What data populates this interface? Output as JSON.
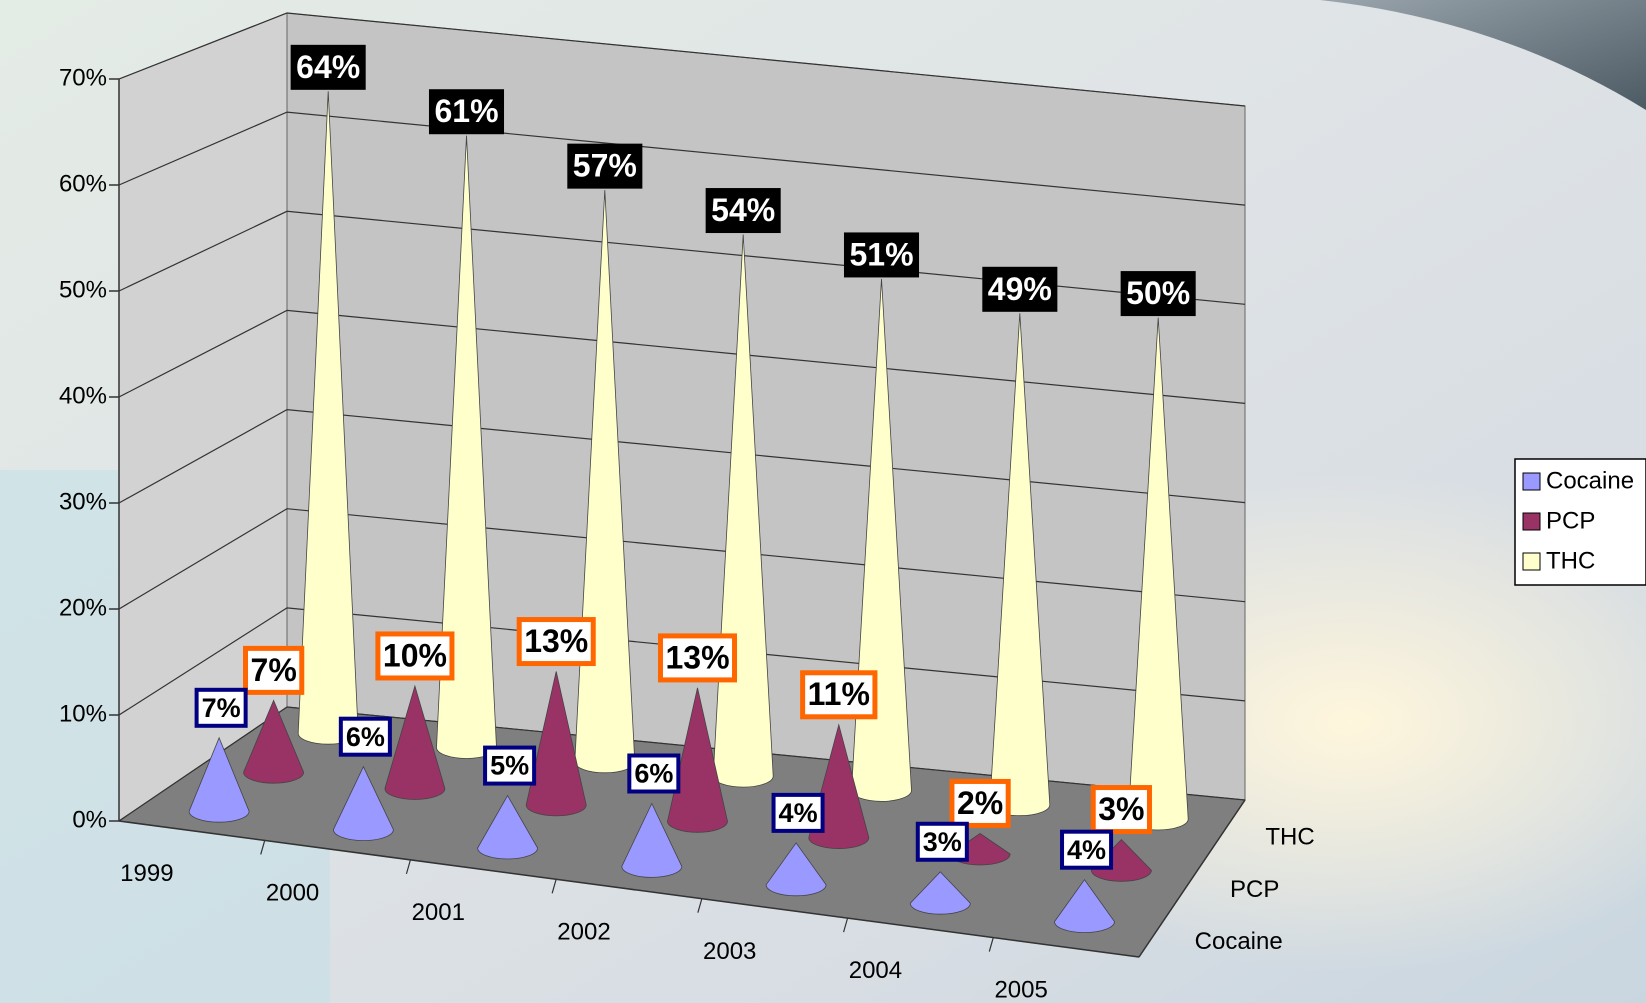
{
  "chart_data": {
    "type": "cone3d",
    "categories": [
      "1999",
      "2000",
      "2001",
      "2002",
      "2003",
      "2004",
      "2005"
    ],
    "series": [
      {
        "name": "Cocaine",
        "color": "#9999ff",
        "values": [
          7,
          6,
          5,
          6,
          4,
          3,
          4
        ],
        "value_labels": [
          "7%",
          "6%",
          "5%",
          "6%",
          "4%",
          "3%",
          "4%"
        ]
      },
      {
        "name": "PCP",
        "color": "#993366",
        "values": [
          7,
          10,
          13,
          13,
          11,
          2,
          3
        ],
        "value_labels": [
          "7%",
          "10%",
          "13%",
          "13%",
          "11%",
          "2%",
          "3%"
        ]
      },
      {
        "name": "THC",
        "color": "#ffffcc",
        "values": [
          64,
          61,
          57,
          54,
          51,
          49,
          50
        ],
        "value_labels": [
          "64%",
          "61%",
          "57%",
          "54%",
          "51%",
          "49%",
          "50%"
        ]
      }
    ],
    "ylim": [
      0,
      70
    ],
    "yticks": [
      {
        "value": 0,
        "label": "0%"
      },
      {
        "value": 10,
        "label": "10%"
      },
      {
        "value": 20,
        "label": "20%"
      },
      {
        "value": 30,
        "label": "30%"
      },
      {
        "value": 40,
        "label": "40%"
      },
      {
        "value": 50,
        "label": "50%"
      },
      {
        "value": 60,
        "label": "60%"
      },
      {
        "value": 70,
        "label": "70%"
      }
    ],
    "grid": true,
    "legend": "right"
  }
}
